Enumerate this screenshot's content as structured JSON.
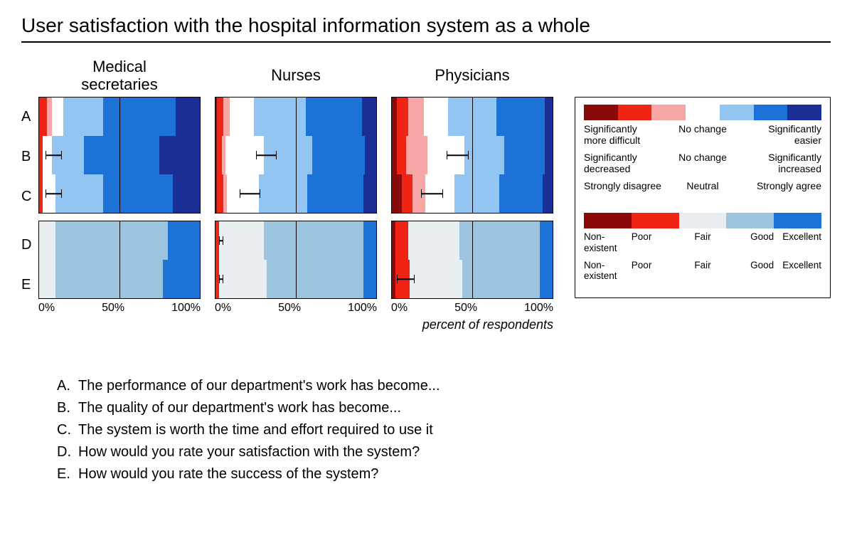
{
  "title": "User satisfaction with the hospital information system as a whole",
  "x_caption": "percent of respondents",
  "x_ticks": [
    "0%",
    "50%",
    "100%"
  ],
  "row_letters": [
    "A",
    "B",
    "C",
    "D",
    "E"
  ],
  "colors7": [
    "#8a0a0a",
    "#f02414",
    "#f7a6a6",
    "#ffffff",
    "#93c5f2",
    "#1c72d6",
    "#1b2e96"
  ],
  "colors5": [
    "#8a0a0a",
    "#f02414",
    "#e9eef0",
    "#9cc4de",
    "#1c72d6"
  ],
  "panel_bg": "#ffffff",
  "border_color": "#000000",
  "panels": [
    {
      "name": "Medical\nsecretaries",
      "groups": [
        {
          "type": "likert7",
          "rows": [
            {
              "segs": [
                0,
                5,
                3,
                7,
                25,
                45,
                15
              ],
              "err": null
            },
            {
              "segs": [
                0,
                2,
                0,
                6,
                20,
                47,
                25
              ],
              "err": [
                4,
                14
              ]
            },
            {
              "segs": [
                0,
                2,
                0,
                8,
                30,
                43,
                17
              ],
              "err": [
                4,
                14
              ]
            }
          ]
        },
        {
          "type": "likert5",
          "rows": [
            {
              "segs": [
                0,
                0,
                10,
                70,
                20
              ],
              "err": null
            },
            {
              "segs": [
                0,
                0,
                10,
                67,
                23
              ],
              "err": null
            }
          ]
        }
      ]
    },
    {
      "name": "Nurses",
      "groups": [
        {
          "type": "likert7",
          "rows": [
            {
              "segs": [
                1,
                4,
                4,
                15,
                32,
                35,
                9
              ],
              "err": null
            },
            {
              "segs": [
                1,
                3,
                2,
                24,
                30,
                33,
                7
              ],
              "err": [
                25,
                38
              ]
            },
            {
              "segs": [
                1,
                4,
                2,
                20,
                30,
                35,
                8
              ],
              "err": [
                15,
                28
              ]
            }
          ]
        },
        {
          "type": "likert5",
          "rows": [
            {
              "segs": [
                0,
                2,
                28,
                62,
                8
              ],
              "err": [
                2,
                5
              ]
            },
            {
              "segs": [
                0,
                2,
                30,
                60,
                8
              ],
              "err": [
                2,
                5
              ]
            }
          ]
        }
      ]
    },
    {
      "name": "Physicians",
      "groups": [
        {
          "type": "likert7",
          "rows": [
            {
              "segs": [
                3,
                7,
                10,
                15,
                30,
                30,
                5
              ],
              "err": null
            },
            {
              "segs": [
                3,
                6,
                13,
                23,
                25,
                25,
                5
              ],
              "err": [
                34,
                48
              ]
            },
            {
              "segs": [
                6,
                7,
                8,
                18,
                28,
                27,
                6
              ],
              "err": [
                18,
                32
              ]
            }
          ]
        },
        {
          "type": "likert5",
          "rows": [
            {
              "segs": [
                2,
                8,
                32,
                50,
                8
              ],
              "err": null
            },
            {
              "segs": [
                2,
                9,
                33,
                48,
                8
              ],
              "err": [
                3,
                14
              ]
            }
          ]
        }
      ]
    }
  ],
  "legend": {
    "scale7_rows": [
      {
        "l": "Significantly more difficult",
        "c": "No change",
        "r": "Significantly easier"
      },
      {
        "l": "Significantly decreased",
        "c": "No change",
        "r": "Significantly increased"
      },
      {
        "l": "Strongly disagree",
        "c": "Neutral",
        "r": "Strongly agree"
      }
    ],
    "scale5_rows": [
      [
        "Non-\nexistent",
        "Poor",
        "Fair",
        "Good",
        "Excellent"
      ],
      [
        "Non-\nexistent",
        "Poor",
        "Fair",
        "Good",
        "Excellent"
      ]
    ]
  },
  "questions": [
    {
      "k": "A.",
      "t": "The performance of our department's work has become..."
    },
    {
      "k": "B.",
      "t": "The quality of our department's work has become..."
    },
    {
      "k": "C.",
      "t": "The system is worth the time and effort required to use it"
    },
    {
      "k": "D.",
      "t": "How would you rate your satisfaction with the system?"
    },
    {
      "k": "E.",
      "t": "How would you rate the success of the system?"
    }
  ],
  "fonts": {
    "title": 28,
    "panel_header": 22,
    "axis": 16,
    "caption": 18,
    "ylab": 20,
    "legend": 14,
    "question": 20
  }
}
